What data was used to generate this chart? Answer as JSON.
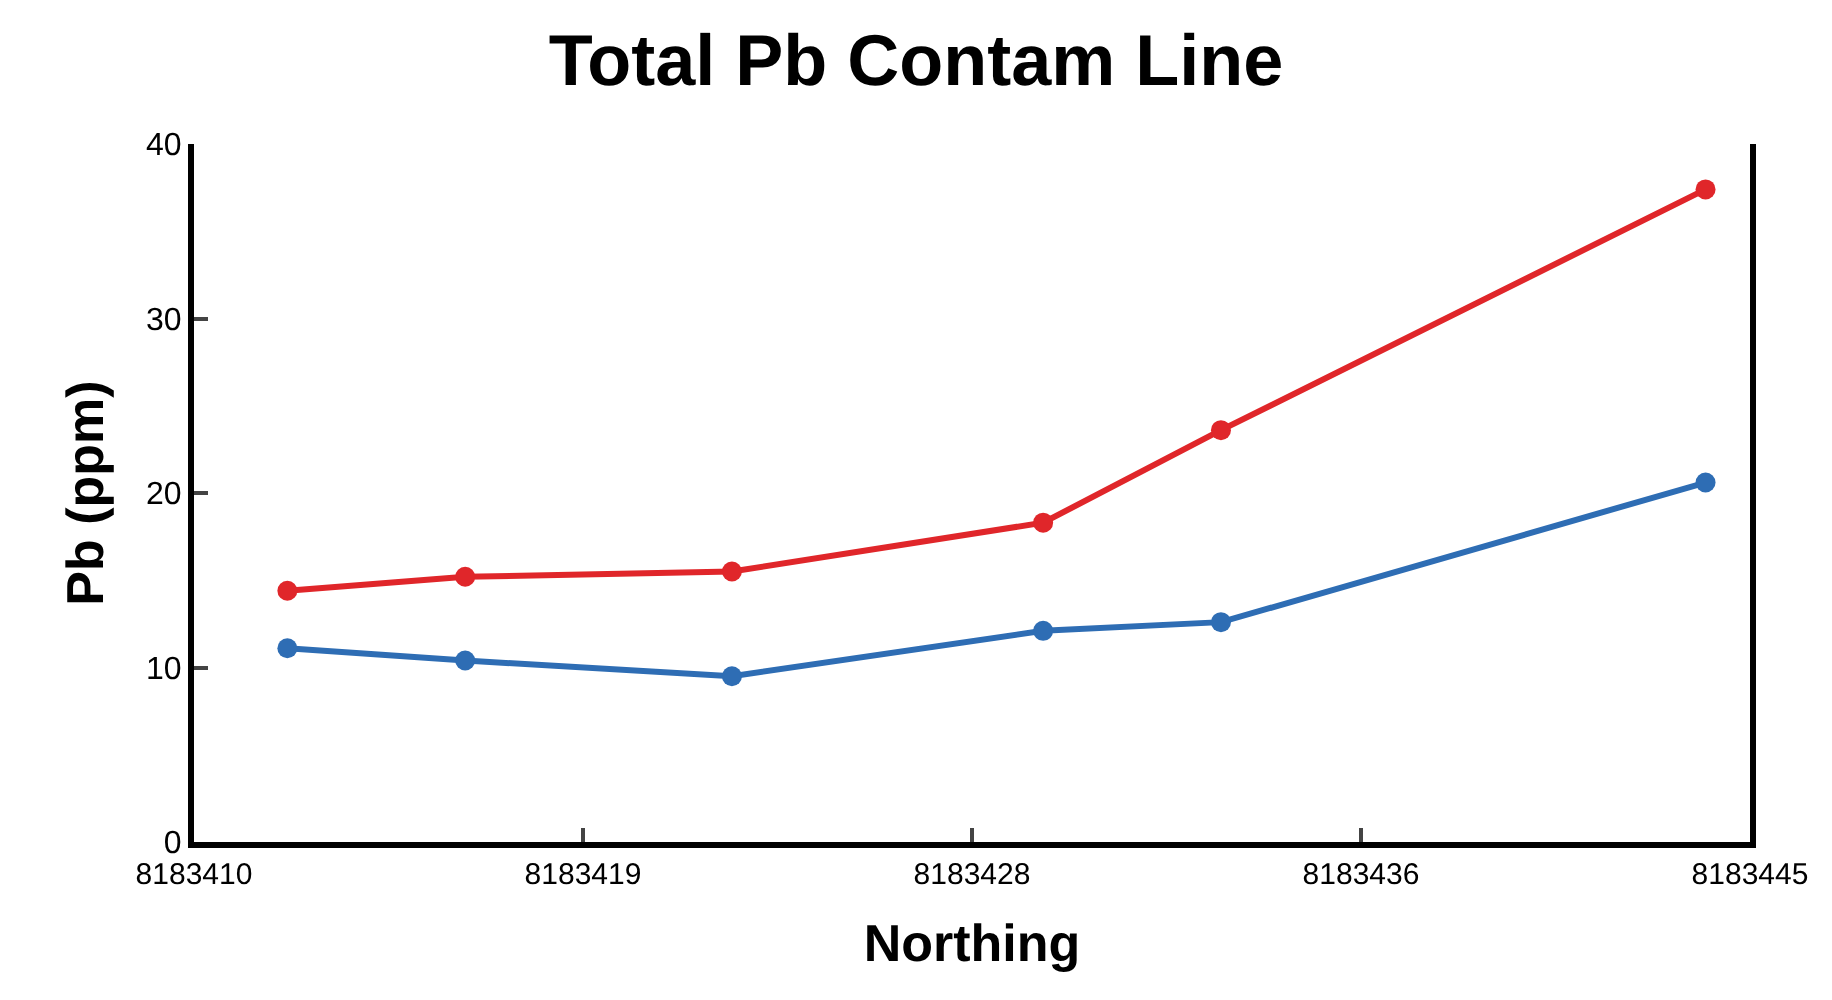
{
  "chart_data": {
    "type": "line",
    "title": "Total Pb Contam Line",
    "xlabel": "Northing",
    "ylabel": "Pb (ppm)",
    "x": [
      8183412.1,
      8183416.1,
      8183422.1,
      8183429.1,
      8183433.1,
      8183444.0
    ],
    "series": [
      {
        "color": "#e0262a",
        "values": [
          14.4,
          15.2,
          15.5,
          18.3,
          23.6,
          37.4
        ]
      },
      {
        "color": "#2e6db4",
        "values": [
          11.1,
          10.4,
          9.5,
          12.1,
          12.6,
          20.6
        ]
      }
    ],
    "xlim": [
      8183410,
      8183445
    ],
    "xticks": [
      8183410,
      {
        "value": 8183418.75,
        "label": "8183419"
      },
      {
        "value": 8183427.5,
        "label": "8183428"
      },
      {
        "value": 8183436.25,
        "label": "8183436"
      },
      8183445
    ],
    "ylim": [
      0,
      40
    ],
    "yticks": [
      0,
      10,
      20,
      30,
      40
    ],
    "grid": false,
    "marker": "circle",
    "line_style": "solid"
  }
}
